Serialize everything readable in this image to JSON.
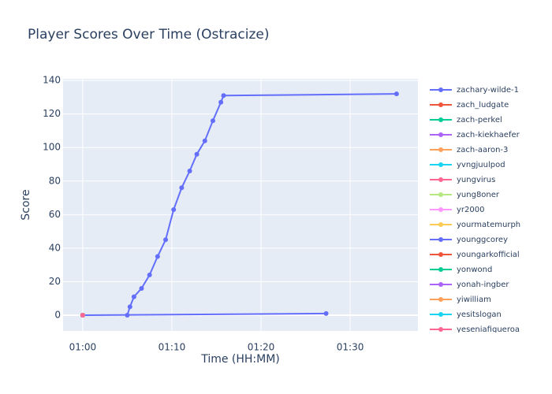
{
  "chart_data": {
    "type": "line",
    "title": "Player Scores Over Time (Ostracize)",
    "x_label": "Time (HH:MM)",
    "y_label": "Score",
    "xlim": [
      57.8,
      97.6
    ],
    "ylim": [
      -9.4,
      141
    ],
    "xticks": [
      {
        "value": 60,
        "label": "01:00"
      },
      {
        "value": 70,
        "label": "01:10"
      },
      {
        "value": 80,
        "label": "01:20"
      },
      {
        "value": 90,
        "label": "01:30"
      }
    ],
    "yticks": [
      0,
      20,
      40,
      60,
      80,
      100,
      120,
      140
    ],
    "grid": true,
    "series": [
      {
        "name": "zachary-wilde-1",
        "color": "#636efa",
        "x": [
          65,
          65.3,
          65.75,
          66.6,
          67.5,
          68.4,
          69.3,
          70.2,
          71.1,
          72,
          72.8,
          73.7,
          74.6,
          75.5,
          75.8,
          95.2
        ],
        "values": [
          0,
          5,
          11,
          16,
          24,
          35,
          45,
          63,
          76,
          86,
          96,
          104,
          116,
          127,
          131,
          132
        ]
      },
      {
        "name": "zach_ludgate",
        "color": "#EF553B",
        "x": [
          60
        ],
        "values": [
          0
        ]
      },
      {
        "name": "zach-perkel",
        "color": "#00cc96",
        "x": [
          60
        ],
        "values": [
          0
        ]
      },
      {
        "name": "zach-kiekhaefer",
        "color": "#ab63fa",
        "x": [
          60
        ],
        "values": [
          0
        ]
      },
      {
        "name": "zach-aaron-3",
        "color": "#FFA15A",
        "x": [
          60
        ],
        "values": [
          0
        ]
      },
      {
        "name": "yvngjuulpod",
        "color": "#19d3f3",
        "x": [
          60
        ],
        "values": [
          0
        ]
      },
      {
        "name": "yungvirus",
        "color": "#FF6692",
        "x": [
          60
        ],
        "values": [
          0
        ]
      },
      {
        "name": "yung8oner",
        "color": "#B6E880",
        "x": [
          60
        ],
        "values": [
          0
        ]
      },
      {
        "name": "yr2000",
        "color": "#FF97FF",
        "x": [
          60
        ],
        "values": [
          0
        ]
      },
      {
        "name": "yourmatemurph",
        "color": "#FECB52",
        "x": [
          60
        ],
        "values": [
          0
        ]
      },
      {
        "name": "younggcorey",
        "color": "#636efa",
        "x": [
          60,
          87.3
        ],
        "values": [
          0,
          1
        ]
      },
      {
        "name": "youngarkofficial",
        "color": "#EF553B",
        "x": [
          60
        ],
        "values": [
          0
        ]
      },
      {
        "name": "yonwond",
        "color": "#00cc96",
        "x": [
          60
        ],
        "values": [
          0
        ]
      },
      {
        "name": "yonah-ingber",
        "color": "#ab63fa",
        "x": [
          60
        ],
        "values": [
          0
        ]
      },
      {
        "name": "yiwilliam",
        "color": "#FFA15A",
        "x": [
          60
        ],
        "values": [
          0
        ]
      },
      {
        "name": "yesitslogan",
        "color": "#19d3f3",
        "x": [
          60
        ],
        "values": [
          0
        ]
      },
      {
        "name": "yeseniafigueroa",
        "color": "#FF6692",
        "x": [
          60
        ],
        "values": [
          0
        ]
      }
    ]
  }
}
